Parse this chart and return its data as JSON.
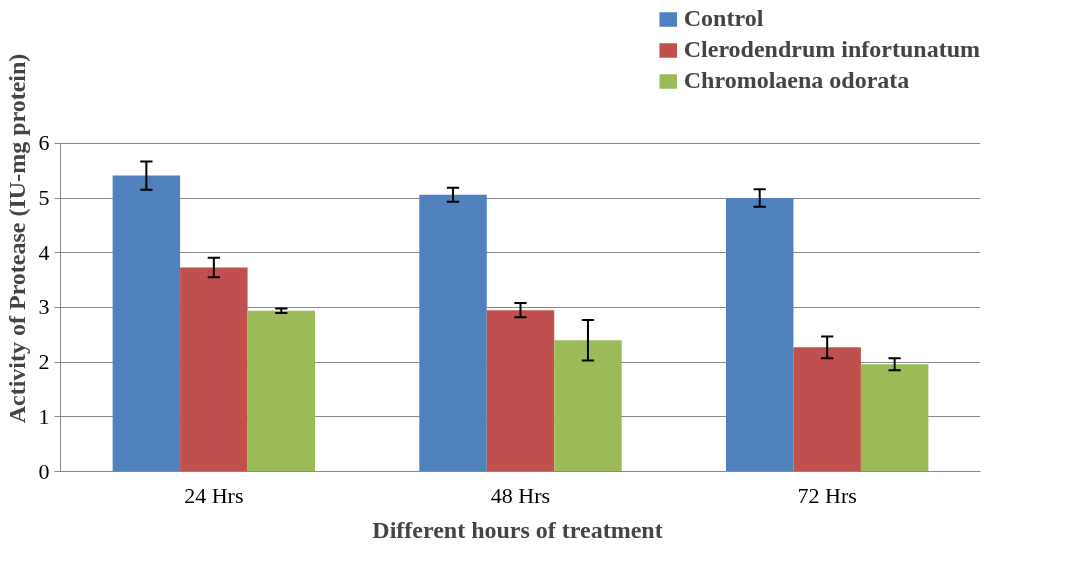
{
  "chart_data": {
    "type": "bar",
    "xlabel": "Different hours of  treatment",
    "ylabel": "Activity of Protease (IU-mg protein)",
    "categories": [
      "24 Hrs",
      "48 Hrs",
      "72 Hrs"
    ],
    "series": [
      {
        "name": "Control",
        "color": "#4f81bd",
        "values": [
          5.41,
          5.06,
          5.0
        ],
        "errors": [
          0.26,
          0.13,
          0.16
        ]
      },
      {
        "name": "Clerodendrum infortunatum",
        "color": "#c0504d",
        "values": [
          3.73,
          2.95,
          2.27
        ],
        "errors": [
          0.18,
          0.13,
          0.2
        ]
      },
      {
        "name": "Chromolaena odorata",
        "color": "#9bbb59",
        "values": [
          2.94,
          2.4,
          1.96
        ],
        "errors": [
          0.04,
          0.37,
          0.11
        ]
      }
    ],
    "ylim": [
      0,
      6
    ],
    "yticks": [
      0,
      1,
      2,
      3,
      4,
      5,
      6
    ],
    "grid": "y",
    "legend": "top right"
  }
}
